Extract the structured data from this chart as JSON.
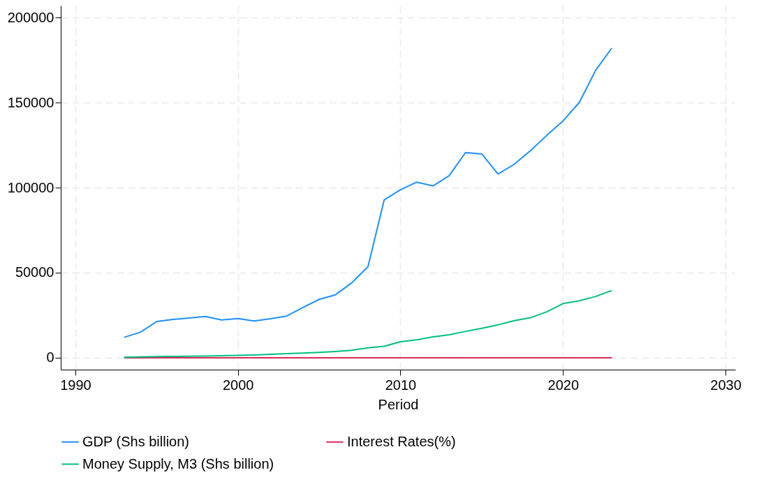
{
  "chart_data": {
    "type": "line",
    "xlabel": "Period",
    "x": [
      1993,
      1994,
      1995,
      1996,
      1997,
      1998,
      1999,
      2000,
      2001,
      2002,
      2003,
      2004,
      2005,
      2006,
      2007,
      2008,
      2009,
      2010,
      2011,
      2012,
      2013,
      2014,
      2015,
      2016,
      2017,
      2018,
      2019,
      2020,
      2021,
      2022,
      2023
    ],
    "series": [
      {
        "name": "GDP (Shs billion)",
        "color": "#1e90ff",
        "values": [
          12000,
          15000,
          21300,
          22500,
          23300,
          24300,
          22200,
          23000,
          21600,
          22900,
          24500,
          29500,
          34300,
          37000,
          44000,
          53500,
          92800,
          98700,
          103200,
          101000,
          107000,
          120600,
          119800,
          108000,
          113700,
          121700,
          130700,
          139200,
          150000,
          168800,
          182000
        ]
      },
      {
        "name": "Interest Rates(%)",
        "color": "#dc2a5a",
        "values": [
          0,
          0,
          0,
          0,
          0,
          0,
          0,
          0,
          0,
          0,
          0,
          0,
          0,
          0,
          0,
          0,
          0,
          0,
          0,
          0,
          0,
          0,
          0,
          0,
          0,
          0,
          0,
          0,
          0,
          0,
          0
        ]
      },
      {
        "name": "Money Supply, M3 (Shs billion)",
        "color": "#00bf7f",
        "values": [
          300,
          500,
          700,
          800,
          900,
          1000,
          1200,
          1400,
          1600,
          2000,
          2400,
          2700,
          3100,
          3700,
          4400,
          5800,
          6700,
          9400,
          10500,
          12300,
          13500,
          15500,
          17300,
          19300,
          21800,
          23500,
          27000,
          31800,
          33500,
          36000,
          39500
        ]
      }
    ],
    "xlim": [
      1989.1,
      2030.6
    ],
    "xticks": [
      1990,
      2000,
      2010,
      2020,
      2030
    ],
    "ylim": [
      -7000,
      207000
    ],
    "yticks": [
      0,
      50000,
      100000,
      150000,
      200000
    ],
    "grid": true,
    "legend": "bottom",
    "line_style": "solid",
    "marker": "none"
  }
}
